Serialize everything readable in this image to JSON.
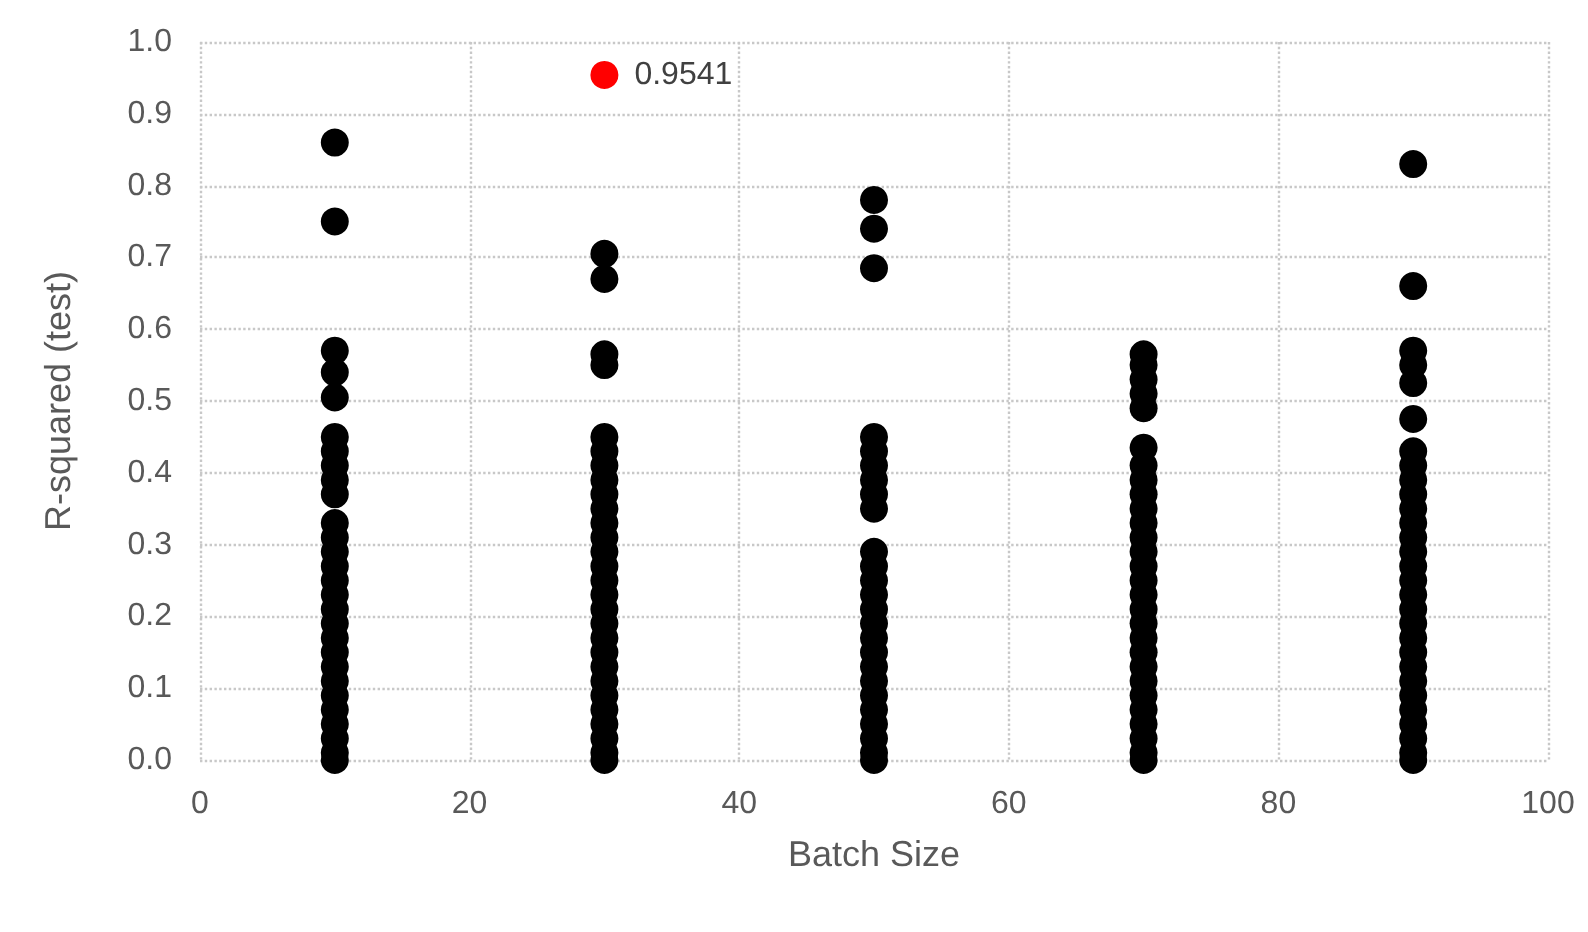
{
  "chart_data": {
    "type": "scatter",
    "xlabel": "Batch Size",
    "ylabel": "R-squared (test)",
    "xlim": [
      0,
      100
    ],
    "xticks": [
      0,
      20,
      40,
      60,
      80,
      100
    ],
    "ylim": [
      0,
      1
    ],
    "yticks": [
      {
        "value": 0,
        "label": "0.0"
      },
      {
        "value": 0.1,
        "label": "0.1"
      },
      {
        "value": 0.2,
        "label": "0.2"
      },
      {
        "value": 0.3,
        "label": "0.3"
      },
      {
        "value": 0.4,
        "label": "0.4"
      },
      {
        "value": 0.5,
        "label": "0.5"
      },
      {
        "value": 0.6,
        "label": "0.6"
      },
      {
        "value": 0.7,
        "label": "0.7"
      },
      {
        "value": 0.8,
        "label": "0.8"
      },
      {
        "value": 0.9,
        "label": "0.9"
      },
      {
        "value": 1,
        "label": "1.0"
      }
    ],
    "grid": true,
    "legend": false,
    "marker": "circle",
    "series": [
      {
        "color": "#000000",
        "x": [
          10,
          10,
          10,
          10,
          10,
          10,
          10,
          10,
          10,
          10,
          10,
          10,
          10,
          10,
          10,
          10,
          10,
          10,
          10,
          10,
          10,
          10,
          10,
          10,
          10,
          10,
          10,
          10,
          30,
          30,
          30,
          30,
          30,
          30,
          30,
          30,
          30,
          30,
          30,
          30,
          30,
          30,
          30,
          30,
          30,
          30,
          30,
          30,
          30,
          30,
          30,
          30,
          30,
          30,
          30,
          30,
          50,
          50,
          50,
          50,
          50,
          50,
          50,
          50,
          50,
          50,
          50,
          50,
          50,
          50,
          50,
          50,
          50,
          50,
          50,
          50,
          50,
          50,
          50,
          50,
          50,
          70,
          70,
          70,
          70,
          70,
          70,
          70,
          70,
          70,
          70,
          70,
          70,
          70,
          70,
          70,
          70,
          70,
          70,
          70,
          70,
          70,
          70,
          70,
          70,
          70,
          70,
          70,
          70,
          90,
          90,
          90,
          90,
          90,
          90,
          90,
          90,
          90,
          90,
          90,
          90,
          90,
          90,
          90,
          90,
          90,
          90,
          90,
          90,
          90,
          90,
          90,
          90,
          90,
          90,
          90,
          90,
          90
        ],
        "values": [
          0.86,
          0.75,
          0.57,
          0.54,
          0.505,
          0.45,
          0.43,
          0.41,
          0.39,
          0.37,
          0.33,
          0.31,
          0.29,
          0.27,
          0.25,
          0.23,
          0.21,
          0.19,
          0.17,
          0.15,
          0.13,
          0.11,
          0.09,
          0.07,
          0.05,
          0.03,
          0.01,
          0,
          0.705,
          0.67,
          0.565,
          0.55,
          0.45,
          0.43,
          0.41,
          0.39,
          0.37,
          0.35,
          0.33,
          0.31,
          0.29,
          0.27,
          0.25,
          0.23,
          0.21,
          0.19,
          0.17,
          0.15,
          0.13,
          0.11,
          0.09,
          0.07,
          0.05,
          0.03,
          0.01,
          0,
          0.78,
          0.74,
          0.685,
          0.45,
          0.43,
          0.41,
          0.39,
          0.37,
          0.35,
          0.29,
          0.27,
          0.25,
          0.23,
          0.21,
          0.19,
          0.17,
          0.15,
          0.13,
          0.11,
          0.09,
          0.07,
          0.05,
          0.03,
          0.01,
          0,
          0.565,
          0.55,
          0.53,
          0.51,
          0.49,
          0.435,
          0.41,
          0.39,
          0.37,
          0.35,
          0.33,
          0.31,
          0.29,
          0.27,
          0.25,
          0.23,
          0.21,
          0.19,
          0.17,
          0.15,
          0.13,
          0.11,
          0.09,
          0.07,
          0.05,
          0.03,
          0.01,
          0,
          0.83,
          0.66,
          0.57,
          0.55,
          0.525,
          0.475,
          0.43,
          0.41,
          0.39,
          0.37,
          0.35,
          0.33,
          0.31,
          0.29,
          0.27,
          0.25,
          0.23,
          0.21,
          0.19,
          0.17,
          0.15,
          0.13,
          0.11,
          0.09,
          0.07,
          0.05,
          0.03,
          0.01,
          0
        ]
      },
      {
        "color": "#ff0000",
        "x": [
          30
        ],
        "values": [
          0.9541
        ],
        "value_labels": [
          "0.9541"
        ]
      }
    ]
  }
}
